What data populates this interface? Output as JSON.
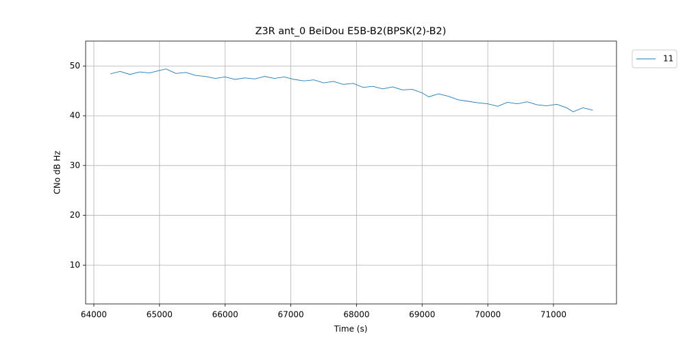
{
  "chart_data": {
    "type": "line",
    "title": "Z3R ant_0 BeiDou E5B-B2(BPSK(2)-B2)",
    "x_label": "Time (s)",
    "y_label": "CNo dB Hz",
    "x": [
      64250,
      64400,
      64550,
      64700,
      64850,
      65000,
      65100,
      65250,
      65400,
      65550,
      65700,
      65850,
      66000,
      66150,
      66300,
      66450,
      66600,
      66750,
      66900,
      67050,
      67200,
      67350,
      67500,
      67650,
      67800,
      67950,
      68100,
      68250,
      68400,
      68550,
      68700,
      68850,
      69000,
      69100,
      69250,
      69400,
      69550,
      69700,
      69850,
      70000,
      70150,
      70300,
      70450,
      70600,
      70750,
      70900,
      71050,
      71200,
      71300,
      71450,
      71600
    ],
    "series": [
      {
        "name": "11",
        "color": "#1f77b4",
        "values": [
          48.4,
          48.9,
          48.3,
          48.8,
          48.6,
          49.1,
          49.4,
          48.5,
          48.7,
          48.1,
          47.9,
          47.5,
          47.8,
          47.3,
          47.6,
          47.4,
          47.9,
          47.5,
          47.8,
          47.3,
          47.0,
          47.2,
          46.6,
          46.9,
          46.3,
          46.5,
          45.7,
          45.9,
          45.4,
          45.8,
          45.2,
          45.3,
          44.6,
          43.8,
          44.4,
          43.9,
          43.2,
          42.9,
          42.6,
          42.4,
          41.9,
          42.7,
          42.4,
          42.8,
          42.2,
          42.0,
          42.3,
          41.6,
          40.8,
          41.6,
          41.1
        ]
      }
    ],
    "xlim": [
      63875,
      71960
    ],
    "ylim": [
      2.2,
      55
    ],
    "xticks": [
      64000,
      65000,
      66000,
      67000,
      68000,
      69000,
      70000,
      71000
    ],
    "yticks": [
      10,
      20,
      30,
      40,
      50
    ],
    "grid": true,
    "legend": "outside-upper-right"
  }
}
